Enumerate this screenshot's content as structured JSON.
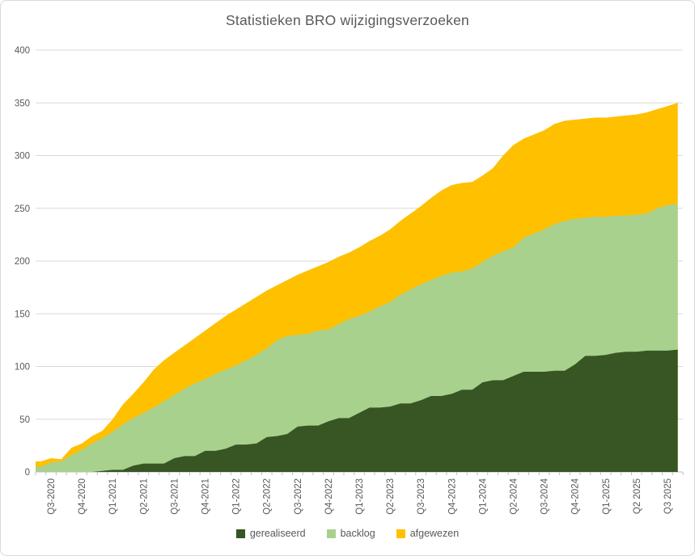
{
  "title": "Statistieken BRO wijzigingsverzoeken",
  "colors": {
    "gerealiseerd": "#375623",
    "backlog": "#a9d18e",
    "afgewezen": "#ffc000",
    "axis_text": "#595959",
    "gridline": "#d9d9d9",
    "axis_line": "#bfbfbf",
    "title_text": "#595959",
    "background": "#ffffff"
  },
  "chart_data": {
    "type": "area",
    "stacked": true,
    "title": "Statistieken BRO wijzigingsverzoeken",
    "xlabel": "",
    "ylabel": "",
    "ylim": [
      0,
      400
    ],
    "ystep": 50,
    "y_tick_labels": [
      "0",
      "50",
      "100",
      "150",
      "200",
      "250",
      "300",
      "350",
      "400"
    ],
    "grid": true,
    "legend_position": "bottom",
    "n_points": 63,
    "label_start_index": 1,
    "label_every": 3,
    "x_labels": [
      "Q3-2020",
      "Q4-2020",
      "Q1-2021",
      "Q2-2021",
      "Q3-2021",
      "Q4-2021",
      "Q1-2022",
      "Q2-2022",
      "Q3-2022",
      "Q4-2022",
      "Q1-2023",
      "Q2-2023",
      "Q3-2023",
      "Q4-2023",
      "Q1-2024",
      "Q2-2024",
      "Q3-2024",
      "Q4-2024",
      "Q1-2025",
      "Q2 2025",
      "Q3 2025"
    ],
    "series": [
      {
        "name": "gerealiseerd",
        "color": "#375623",
        "values": [
          0,
          0,
          0,
          0,
          0,
          0,
          1,
          2,
          2,
          6,
          8,
          8,
          8,
          13,
          15,
          15,
          20,
          20,
          22,
          26,
          26,
          27,
          33,
          34,
          36,
          43,
          44,
          44,
          48,
          51,
          51,
          56,
          61,
          61,
          62,
          65,
          65,
          68,
          72,
          72,
          74,
          78,
          78,
          85,
          87,
          87,
          91,
          95,
          95,
          95,
          96,
          96,
          102,
          110,
          110,
          111,
          113,
          114,
          114,
          115,
          115,
          115,
          116
        ]
      },
      {
        "name": "backlog",
        "color": "#a9d18e",
        "values": [
          5,
          9,
          10,
          16,
          21,
          27,
          31,
          36,
          43,
          45,
          48,
          53,
          59,
          60,
          64,
          69,
          68,
          73,
          75,
          75,
          80,
          84,
          84,
          91,
          93,
          87,
          87,
          90,
          87,
          89,
          94,
          92,
          91,
          96,
          99,
          103,
          108,
          110,
          110,
          114,
          115,
          112,
          115,
          114,
          118,
          122,
          122,
          127,
          131,
          135,
          139,
          142,
          138,
          131,
          132,
          131,
          130,
          129,
          130,
          130,
          135,
          138,
          138
        ]
      },
      {
        "name": "afgewezen",
        "color": "#ffc000",
        "values": [
          5,
          4,
          2,
          7,
          6,
          7,
          7,
          12,
          19,
          23,
          29,
          36,
          39,
          40,
          41,
          43,
          46,
          48,
          51,
          53,
          54,
          55,
          55,
          52,
          53,
          57,
          60,
          61,
          64,
          64,
          63,
          65,
          67,
          67,
          69,
          70,
          72,
          74,
          78,
          81,
          83,
          84,
          82,
          82,
          83,
          91,
          97,
          94,
          94,
          94,
          95,
          95,
          94,
          94,
          94,
          94,
          94,
          95,
          95,
          96,
          94,
          94,
          96
        ]
      }
    ]
  }
}
